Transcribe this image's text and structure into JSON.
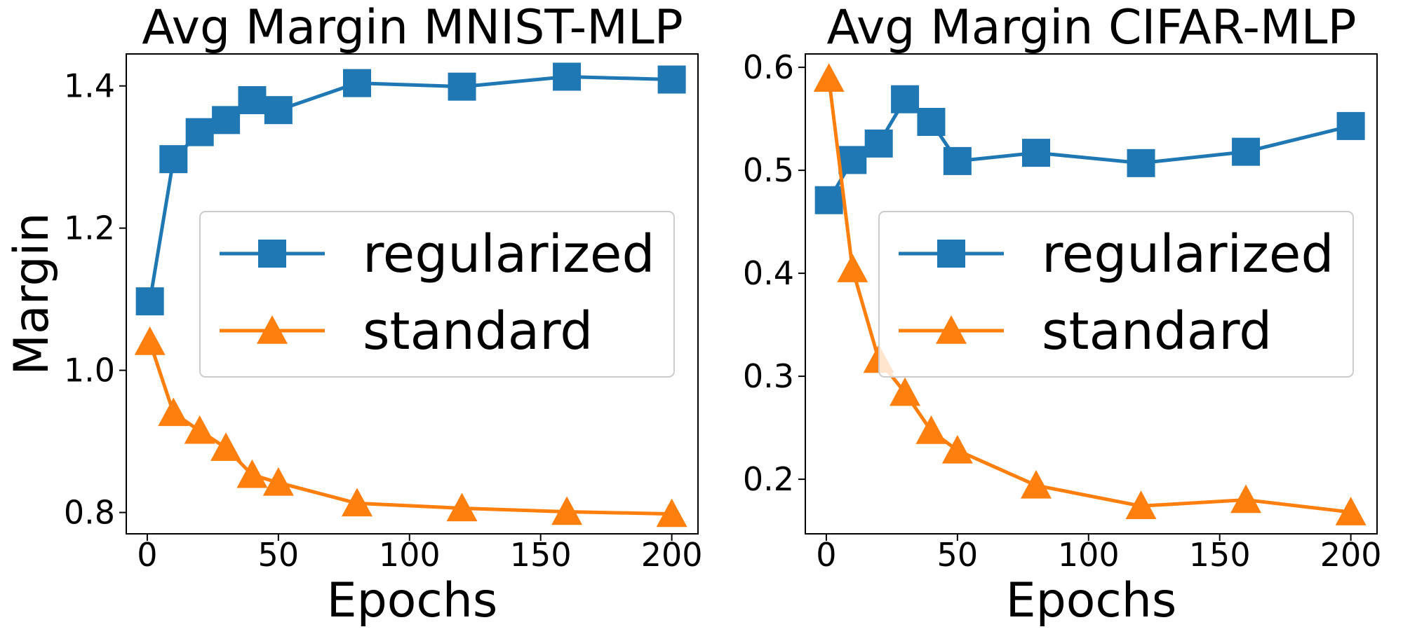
{
  "chart_data": [
    {
      "type": "line",
      "title": "Avg Margin MNIST-MLP",
      "xlabel": "Epochs",
      "ylabel": "Margin",
      "xlim": [
        -8,
        210
      ],
      "ylim": [
        0.77,
        1.445
      ],
      "xticks": [
        0,
        50,
        100,
        150,
        200
      ],
      "xtick_labels": [
        "0",
        "50",
        "100",
        "150",
        "200"
      ],
      "yticks": [
        0.8,
        1.0,
        1.2,
        1.4
      ],
      "ytick_labels": [
        "0.8",
        "1.0",
        "1.2",
        "1.4"
      ],
      "grid": false,
      "legend_position": "center-right",
      "series": [
        {
          "name": "regularized",
          "marker": "square",
          "color": "#1f77b4",
          "x": [
            1,
            10,
            20,
            30,
            40,
            50,
            80,
            120,
            160,
            200
          ],
          "y": [
            1.097,
            1.297,
            1.335,
            1.352,
            1.38,
            1.366,
            1.404,
            1.399,
            1.413,
            1.409
          ]
        },
        {
          "name": "standard",
          "marker": "triangle",
          "color": "#ff7f0e",
          "x": [
            1,
            10,
            20,
            30,
            40,
            50,
            80,
            120,
            160,
            200
          ],
          "y": [
            1.04,
            0.94,
            0.915,
            0.891,
            0.853,
            0.842,
            0.813,
            0.806,
            0.801,
            0.798
          ]
        }
      ]
    },
    {
      "type": "line",
      "title": "Avg Margin CIFAR-MLP",
      "xlabel": "Epochs",
      "ylabel": "",
      "xlim": [
        -8,
        210
      ],
      "ylim": [
        0.147,
        0.613
      ],
      "xticks": [
        0,
        50,
        100,
        150,
        200
      ],
      "xtick_labels": [
        "0",
        "50",
        "100",
        "150",
        "200"
      ],
      "yticks": [
        0.2,
        0.3,
        0.4,
        0.5,
        0.6
      ],
      "ytick_labels": [
        "0.2",
        "0.3",
        "0.4",
        "0.5",
        "0.6"
      ],
      "grid": false,
      "legend_position": "center-right",
      "series": [
        {
          "name": "regularized",
          "marker": "square",
          "color": "#1f77b4",
          "x": [
            1,
            10,
            20,
            30,
            40,
            50,
            80,
            120,
            160,
            200
          ],
          "y": [
            0.471,
            0.51,
            0.526,
            0.569,
            0.547,
            0.509,
            0.517,
            0.507,
            0.518,
            0.543
          ]
        },
        {
          "name": "standard",
          "marker": "triangle",
          "color": "#ff7f0e",
          "x": [
            1,
            10,
            20,
            30,
            40,
            50,
            80,
            120,
            160,
            200
          ],
          "y": [
            0.589,
            0.404,
            0.316,
            0.284,
            0.247,
            0.228,
            0.194,
            0.174,
            0.18,
            0.168
          ]
        }
      ]
    }
  ]
}
